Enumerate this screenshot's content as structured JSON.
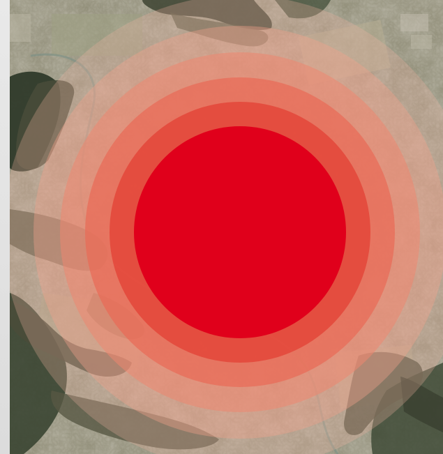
{
  "map": {
    "rings": [
      {
        "level": 1,
        "color": "#e0001b",
        "opacity": 1.0
      },
      {
        "level": 2,
        "color": "#e4473a",
        "opacity": 0.85
      },
      {
        "level": 3,
        "color": "#ea6a55",
        "opacity": 0.7
      },
      {
        "level": 4,
        "color": "#ee8770",
        "opacity": 0.55
      },
      {
        "level": 5,
        "color": "#f0a08a",
        "opacity": 0.4
      },
      {
        "level": 6,
        "color": "#f1b5a2",
        "opacity": 0.28
      }
    ],
    "colors": {
      "terrain": "#8d8a74",
      "farmland": "#a8a28a",
      "forest": "#2f3a2a",
      "camo_dark": "#3e4433",
      "camo_mid": "#5d5e48",
      "river": "#7a8f86"
    }
  }
}
